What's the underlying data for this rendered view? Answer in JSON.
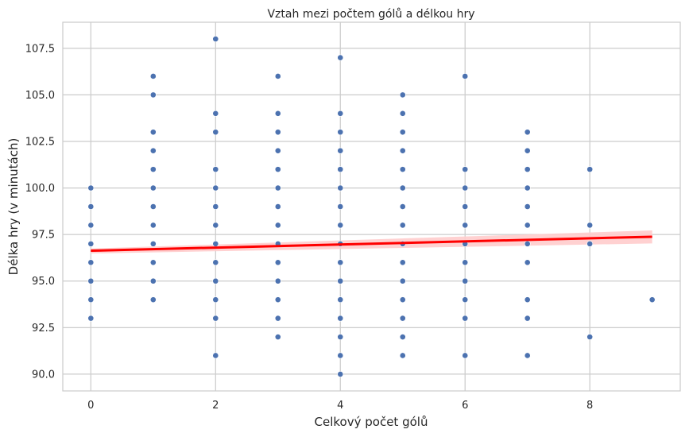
{
  "chart_data": {
    "type": "scatter",
    "title": "Vztah mezi počtem gólů a délkou hry",
    "xlabel": "Celkový počet gólů",
    "ylabel": "Délka hry (v minutách)",
    "xlim": [
      -0.45,
      9.45
    ],
    "ylim": [
      89.1,
      108.9
    ],
    "xticks": [
      0,
      2,
      4,
      6,
      8
    ],
    "xtick_labels": [
      "0",
      "2",
      "4",
      "6",
      "8"
    ],
    "yticks": [
      90.0,
      92.5,
      95.0,
      97.5,
      100.0,
      102.5,
      105.0,
      107.5
    ],
    "ytick_labels": [
      "90.0",
      "92.5",
      "95.0",
      "97.5",
      "100.0",
      "102.5",
      "105.0",
      "107.5"
    ],
    "grid": true,
    "colors": {
      "points": "#4c72b0",
      "regression": "#ff0000",
      "confidence_band": "#ffcccc",
      "grid": "#cccccc",
      "axes": "#cccccc"
    },
    "series": [
      {
        "points": [
          [
            0,
            93
          ],
          [
            0,
            94
          ],
          [
            0,
            95
          ],
          [
            0,
            96
          ],
          [
            0,
            97
          ],
          [
            0,
            98
          ],
          [
            0,
            99
          ],
          [
            0,
            100
          ],
          [
            1,
            94
          ],
          [
            1,
            95
          ],
          [
            1,
            96
          ],
          [
            1,
            97
          ],
          [
            1,
            98
          ],
          [
            1,
            99
          ],
          [
            1,
            100
          ],
          [
            1,
            101
          ],
          [
            1,
            102
          ],
          [
            1,
            103
          ],
          [
            1,
            105
          ],
          [
            1,
            106
          ],
          [
            2,
            91
          ],
          [
            2,
            93
          ],
          [
            2,
            94
          ],
          [
            2,
            95
          ],
          [
            2,
            96
          ],
          [
            2,
            97
          ],
          [
            2,
            98
          ],
          [
            2,
            99
          ],
          [
            2,
            100
          ],
          [
            2,
            101
          ],
          [
            2,
            103
          ],
          [
            2,
            104
          ],
          [
            2,
            108
          ],
          [
            3,
            92
          ],
          [
            3,
            93
          ],
          [
            3,
            94
          ],
          [
            3,
            95
          ],
          [
            3,
            96
          ],
          [
            3,
            97
          ],
          [
            3,
            98
          ],
          [
            3,
            99
          ],
          [
            3,
            100
          ],
          [
            3,
            101
          ],
          [
            3,
            102
          ],
          [
            3,
            103
          ],
          [
            3,
            104
          ],
          [
            3,
            106
          ],
          [
            4,
            90
          ],
          [
            4,
            91
          ],
          [
            4,
            92
          ],
          [
            4,
            93
          ],
          [
            4,
            94
          ],
          [
            4,
            95
          ],
          [
            4,
            96
          ],
          [
            4,
            97
          ],
          [
            4,
            98
          ],
          [
            4,
            99
          ],
          [
            4,
            100
          ],
          [
            4,
            101
          ],
          [
            4,
            102
          ],
          [
            4,
            103
          ],
          [
            4,
            104
          ],
          [
            4,
            107
          ],
          [
            5,
            91
          ],
          [
            5,
            92
          ],
          [
            5,
            93
          ],
          [
            5,
            94
          ],
          [
            5,
            95
          ],
          [
            5,
            96
          ],
          [
            5,
            97
          ],
          [
            5,
            98
          ],
          [
            5,
            99
          ],
          [
            5,
            100
          ],
          [
            5,
            101
          ],
          [
            5,
            102
          ],
          [
            5,
            103
          ],
          [
            5,
            104
          ],
          [
            5,
            105
          ],
          [
            6,
            91
          ],
          [
            6,
            93
          ],
          [
            6,
            94
          ],
          [
            6,
            95
          ],
          [
            6,
            96
          ],
          [
            6,
            97
          ],
          [
            6,
            98
          ],
          [
            6,
            99
          ],
          [
            6,
            100
          ],
          [
            6,
            101
          ],
          [
            6,
            106
          ],
          [
            7,
            91
          ],
          [
            7,
            93
          ],
          [
            7,
            94
          ],
          [
            7,
            96
          ],
          [
            7,
            97
          ],
          [
            7,
            98
          ],
          [
            7,
            99
          ],
          [
            7,
            100
          ],
          [
            7,
            101
          ],
          [
            7,
            102
          ],
          [
            7,
            103
          ],
          [
            8,
            92
          ],
          [
            8,
            97
          ],
          [
            8,
            98
          ],
          [
            8,
            101
          ],
          [
            9,
            94
          ]
        ]
      }
    ],
    "regression": {
      "x": [
        0,
        9
      ],
      "y": [
        96.63,
        97.38
      ],
      "ci_upper": [
        96.75,
        97.72
      ],
      "ci_lower": [
        96.48,
        97.02
      ]
    }
  }
}
